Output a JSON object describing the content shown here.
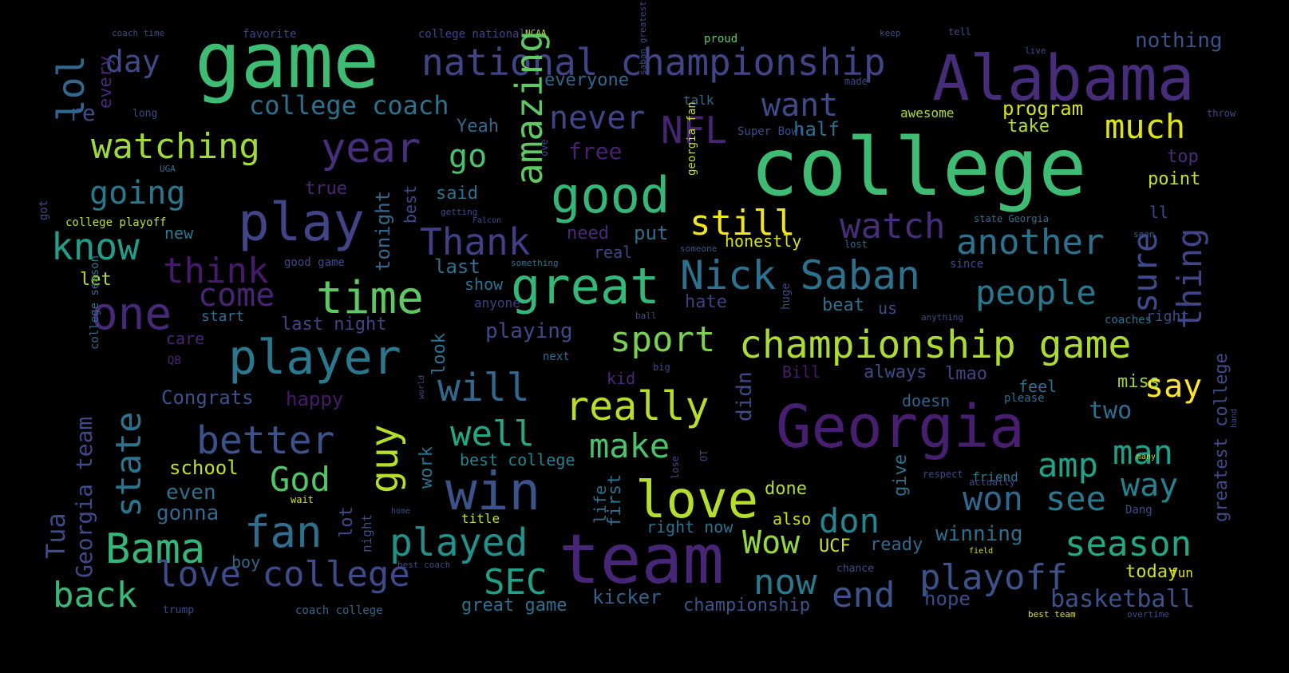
{
  "words": [
    {
      "text": "game",
      "color": "#3fbc73"
    },
    {
      "text": "college",
      "color": "#3fbc73"
    },
    {
      "text": "Alabama",
      "color": "#472c7a"
    },
    {
      "text": "national championship",
      "color": "#414487"
    },
    {
      "text": "Georgia",
      "color": "#481f70"
    },
    {
      "text": "team",
      "color": "#482677"
    },
    {
      "text": "win",
      "color": "#3b528b"
    },
    {
      "text": "love",
      "color": "#b5de2b"
    },
    {
      "text": "good",
      "color": "#35b779"
    },
    {
      "text": "year",
      "color": "#472f7d"
    },
    {
      "text": "play",
      "color": "#414487"
    },
    {
      "text": "time",
      "color": "#5ec962"
    },
    {
      "text": "great",
      "color": "#35b779"
    },
    {
      "text": "player",
      "color": "#2a788e"
    },
    {
      "text": "Nick Saban",
      "color": "#2c728e"
    },
    {
      "text": "championship game",
      "color": "#addc30"
    },
    {
      "text": "really",
      "color": "#b8de29"
    },
    {
      "text": "watching",
      "color": "#a0da39"
    },
    {
      "text": "NFL",
      "color": "#482475"
    },
    {
      "text": "fan",
      "color": "#2d708e"
    },
    {
      "text": "Bama",
      "color": "#35b779"
    },
    {
      "text": "love college",
      "color": "#3e4a89"
    },
    {
      "text": "played",
      "color": "#21918c"
    },
    {
      "text": "playoff",
      "color": "#3b528b"
    },
    {
      "text": "season",
      "color": "#22a884"
    },
    {
      "text": "better",
      "color": "#3b528b"
    },
    {
      "text": "one",
      "color": "#482878"
    },
    {
      "text": "know",
      "color": "#1f9e89"
    },
    {
      "text": "think",
      "color": "#481a6c"
    },
    {
      "text": "watch",
      "color": "#472d7b"
    },
    {
      "text": "another",
      "color": "#2c728e"
    },
    {
      "text": "people",
      "color": "#2a788e"
    },
    {
      "text": "will",
      "color": "#31688e"
    },
    {
      "text": "well",
      "color": "#22a884"
    },
    {
      "text": "make",
      "color": "#4ac16d"
    },
    {
      "text": "back",
      "color": "#38b977"
    },
    {
      "text": "now",
      "color": "#2a788e"
    },
    {
      "text": "end",
      "color": "#3b528b"
    },
    {
      "text": "won",
      "color": "#31688e"
    },
    {
      "text": "see",
      "color": "#2a788e"
    },
    {
      "text": "way",
      "color": "#26828e"
    },
    {
      "text": "amp",
      "color": "#20a386"
    },
    {
      "text": "man",
      "color": "#1fa088"
    },
    {
      "text": "Wow",
      "color": "#95d840"
    },
    {
      "text": "don",
      "color": "#25858e"
    },
    {
      "text": "God",
      "color": "#52c569"
    },
    {
      "text": "SEC",
      "color": "#1fa188"
    },
    {
      "text": "sport",
      "color": "#7ad151"
    },
    {
      "text": "Thank",
      "color": "#433e85"
    },
    {
      "text": "still",
      "color": "#f1e51d"
    },
    {
      "text": "much",
      "color": "#dde318"
    },
    {
      "text": "want",
      "color": "#3e4a89"
    },
    {
      "text": "never",
      "color": "#414487"
    },
    {
      "text": "going",
      "color": "#2a788e"
    },
    {
      "text": "day",
      "color": "#3e4a89"
    },
    {
      "text": "come",
      "color": "#482475"
    },
    {
      "text": "go",
      "color": "#4ac16d"
    },
    {
      "text": "say",
      "color": "#fde725"
    },
    {
      "text": "two",
      "color": "#2e6e8e"
    },
    {
      "text": "college coach",
      "color": "#2c728e"
    },
    {
      "text": "basketball",
      "color": "#3b528b"
    },
    {
      "text": "kicker",
      "color": "#33638d"
    },
    {
      "text": "championship",
      "color": "#3b528b"
    },
    {
      "text": "great game",
      "color": "#2e6e8e"
    },
    {
      "text": "hope",
      "color": "#3e4a89"
    },
    {
      "text": "winning",
      "color": "#2d708e"
    },
    {
      "text": "ready",
      "color": "#31688e"
    },
    {
      "text": "UCF",
      "color": "#d0e11c"
    },
    {
      "text": "Congrats",
      "color": "#3b528b"
    },
    {
      "text": "happy",
      "color": "#481a6c"
    },
    {
      "text": "school",
      "color": "#c2df23"
    },
    {
      "text": "even",
      "color": "#2c728e"
    },
    {
      "text": "gonna",
      "color": "#31688e"
    },
    {
      "text": "playing",
      "color": "#3e4a89"
    },
    {
      "text": "care",
      "color": "#482576"
    },
    {
      "text": "last night",
      "color": "#414487"
    },
    {
      "text": "start",
      "color": "#2e6e8e"
    },
    {
      "text": "last",
      "color": "#2c728e"
    },
    {
      "text": "show",
      "color": "#2c728e"
    },
    {
      "text": "anyone",
      "color": "#433e85"
    },
    {
      "text": "real",
      "color": "#414487"
    },
    {
      "text": "need",
      "color": "#482878"
    },
    {
      "text": "new",
      "color": "#2a788e"
    },
    {
      "text": "let",
      "color": "#b5de2b"
    },
    {
      "text": "re",
      "color": "#3e4a89"
    },
    {
      "text": "free",
      "color": "#482173"
    },
    {
      "text": "Yeah",
      "color": "#31688e"
    },
    {
      "text": "said",
      "color": "#2c728e"
    },
    {
      "text": "true",
      "color": "#482878"
    },
    {
      "text": "put",
      "color": "#2e6e8e"
    },
    {
      "text": "honestly",
      "color": "#d8e219"
    },
    {
      "text": "half",
      "color": "#2e6e8e"
    },
    {
      "text": "program",
      "color": "#d5e21a"
    },
    {
      "text": "take",
      "color": "#b5de2b"
    },
    {
      "text": "top",
      "color": "#472c7a"
    },
    {
      "text": "point",
      "color": "#c8e020"
    },
    {
      "text": "ll",
      "color": "#3e4a89"
    },
    {
      "text": "right",
      "color": "#3e4a89"
    },
    {
      "text": "nothing",
      "color": "#3b528b"
    },
    {
      "text": "everyone",
      "color": "#31688e"
    },
    {
      "text": "hate",
      "color": "#433e85"
    },
    {
      "text": "beat",
      "color": "#2e6e8e"
    },
    {
      "text": "us",
      "color": "#3e4a89"
    },
    {
      "text": "coaches",
      "color": "#2c728e"
    },
    {
      "text": "always",
      "color": "#3e4a89"
    },
    {
      "text": "lmao",
      "color": "#414487"
    },
    {
      "text": "feel",
      "color": "#2e6e8e"
    },
    {
      "text": "miss",
      "color": "#99d83d"
    },
    {
      "text": "doesn",
      "color": "#33638d"
    },
    {
      "text": "please",
      "color": "#2e6e8e"
    },
    {
      "text": "done",
      "color": "#b5de2b"
    },
    {
      "text": "friend",
      "color": "#2a788e"
    },
    {
      "text": "best college",
      "color": "#26828e"
    },
    {
      "text": "title",
      "color": "#c2df23"
    },
    {
      "text": "right now",
      "color": "#2c728e"
    },
    {
      "text": "also",
      "color": "#d0e11c"
    },
    {
      "text": "boy",
      "color": "#31688e"
    },
    {
      "text": "today",
      "color": "#cde11d"
    },
    {
      "text": "fun",
      "color": "#dde318"
    },
    {
      "text": "kid",
      "color": "#482878"
    },
    {
      "text": "Bill",
      "color": "#481a6c"
    },
    {
      "text": "QB",
      "color": "#482575"
    },
    {
      "text": "next",
      "color": "#2e6e8e"
    },
    {
      "text": "big",
      "color": "#3e4a89"
    },
    {
      "text": "favorite",
      "color": "#414487"
    },
    {
      "text": "coach time",
      "color": "#3e4a89"
    },
    {
      "text": "college national",
      "color": "#414487"
    },
    {
      "text": "NCAA",
      "color": "#bddf26"
    },
    {
      "text": "proud",
      "color": "#5ec962"
    },
    {
      "text": "keep",
      "color": "#3e4a89"
    },
    {
      "text": "tell",
      "color": "#3e4a89"
    },
    {
      "text": "awesome",
      "color": "#addc30"
    },
    {
      "text": "Super Bowl",
      "color": "#3e4a89"
    },
    {
      "text": "talk",
      "color": "#31688e"
    },
    {
      "text": "long",
      "color": "#3e4a89"
    },
    {
      "text": "UGA",
      "color": "#2c728e"
    },
    {
      "text": "college playoff",
      "color": "#c2df23"
    },
    {
      "text": "good game",
      "color": "#3e4a89"
    },
    {
      "text": "something",
      "color": "#2c728e"
    },
    {
      "text": "someone",
      "color": "#3b528b"
    },
    {
      "text": "since",
      "color": "#3e4a89"
    },
    {
      "text": "state Georgia",
      "color": "#2c728e"
    },
    {
      "text": "seen",
      "color": "#31688e"
    },
    {
      "text": "lost",
      "color": "#31688e"
    },
    {
      "text": "ball",
      "color": "#3e4a89"
    },
    {
      "text": "anything",
      "color": "#3e4a89"
    },
    {
      "text": "getting",
      "color": "#3e4a89"
    },
    {
      "text": "Falcon",
      "color": "#3e4a89"
    },
    {
      "text": "made",
      "color": "#3e4a89"
    },
    {
      "text": "live",
      "color": "#3e4a89"
    },
    {
      "text": "throw",
      "color": "#3e4a89"
    },
    {
      "text": "trump",
      "color": "#3e4a89"
    },
    {
      "text": "coach college",
      "color": "#31688e"
    },
    {
      "text": "best team",
      "color": "#dde318"
    },
    {
      "text": "overtime",
      "color": "#3e4a89"
    },
    {
      "text": "best coach",
      "color": "#3e4a89"
    },
    {
      "text": "chance",
      "color": "#3e4a89"
    },
    {
      "text": "field",
      "color": "#cde11d"
    },
    {
      "text": "actually",
      "color": "#3e4a89"
    },
    {
      "text": "respect",
      "color": "#3e4a89"
    },
    {
      "text": "Dang",
      "color": "#3e4a89"
    },
    {
      "text": "many",
      "color": "#c2df23"
    },
    {
      "text": "home",
      "color": "#3e4a89"
    },
    {
      "text": "wait",
      "color": "#d0e11c"
    },
    {
      "text": "night",
      "color": "#3e4a89"
    },
    {
      "text": "lot",
      "color": "#3e4a89"
    },
    {
      "text": "work",
      "color": "#2c728e"
    },
    {
      "text": "first",
      "color": "#2c728e"
    },
    {
      "text": "life",
      "color": "#2e6e8e"
    },
    {
      "text": "give",
      "color": "#2c728e"
    },
    {
      "text": "didn",
      "color": "#3e4a89"
    },
    {
      "text": "look",
      "color": "#2c728e"
    },
    {
      "text": "state",
      "color": "#2c728e"
    },
    {
      "text": "guy",
      "color": "#b5de2b"
    },
    {
      "text": "tonight",
      "color": "#31688e"
    },
    {
      "text": "best",
      "color": "#3e4a89"
    },
    {
      "text": "amazing",
      "color": "#5ec962"
    },
    {
      "text": "sure",
      "color": "#3e4a89"
    },
    {
      "text": "thing",
      "color": "#414487"
    },
    {
      "text": "lol",
      "color": "#31688e"
    },
    {
      "text": "every",
      "color": "#482878"
    },
    {
      "text": "got",
      "color": "#3e4a89"
    },
    {
      "text": "Tua",
      "color": "#3e4a89"
    },
    {
      "text": "Georgia team",
      "color": "#3e4a89"
    },
    {
      "text": "college season",
      "color": "#2c728e"
    },
    {
      "text": "greatest college",
      "color": "#3e4a89"
    },
    {
      "text": "ove",
      "color": "#3e4a89"
    },
    {
      "text": "georgia fan",
      "color": "#c2df23"
    },
    {
      "text": "hand",
      "color": "#3e4a89"
    },
    {
      "text": "lose",
      "color": "#3e4a89"
    },
    {
      "text": "huge",
      "color": "#3e4a89"
    },
    {
      "text": "saban greatest",
      "color": "#3e4a89"
    },
    {
      "text": "OT",
      "color": "#3e4a89"
    },
    {
      "text": "world",
      "color": "#3e4a89"
    },
    {
      "text": "help",
      "color": "#3e4a89"
    },
    {
      "text": "NCAA",
      "color": "#3e4a89"
    }
  ]
}
